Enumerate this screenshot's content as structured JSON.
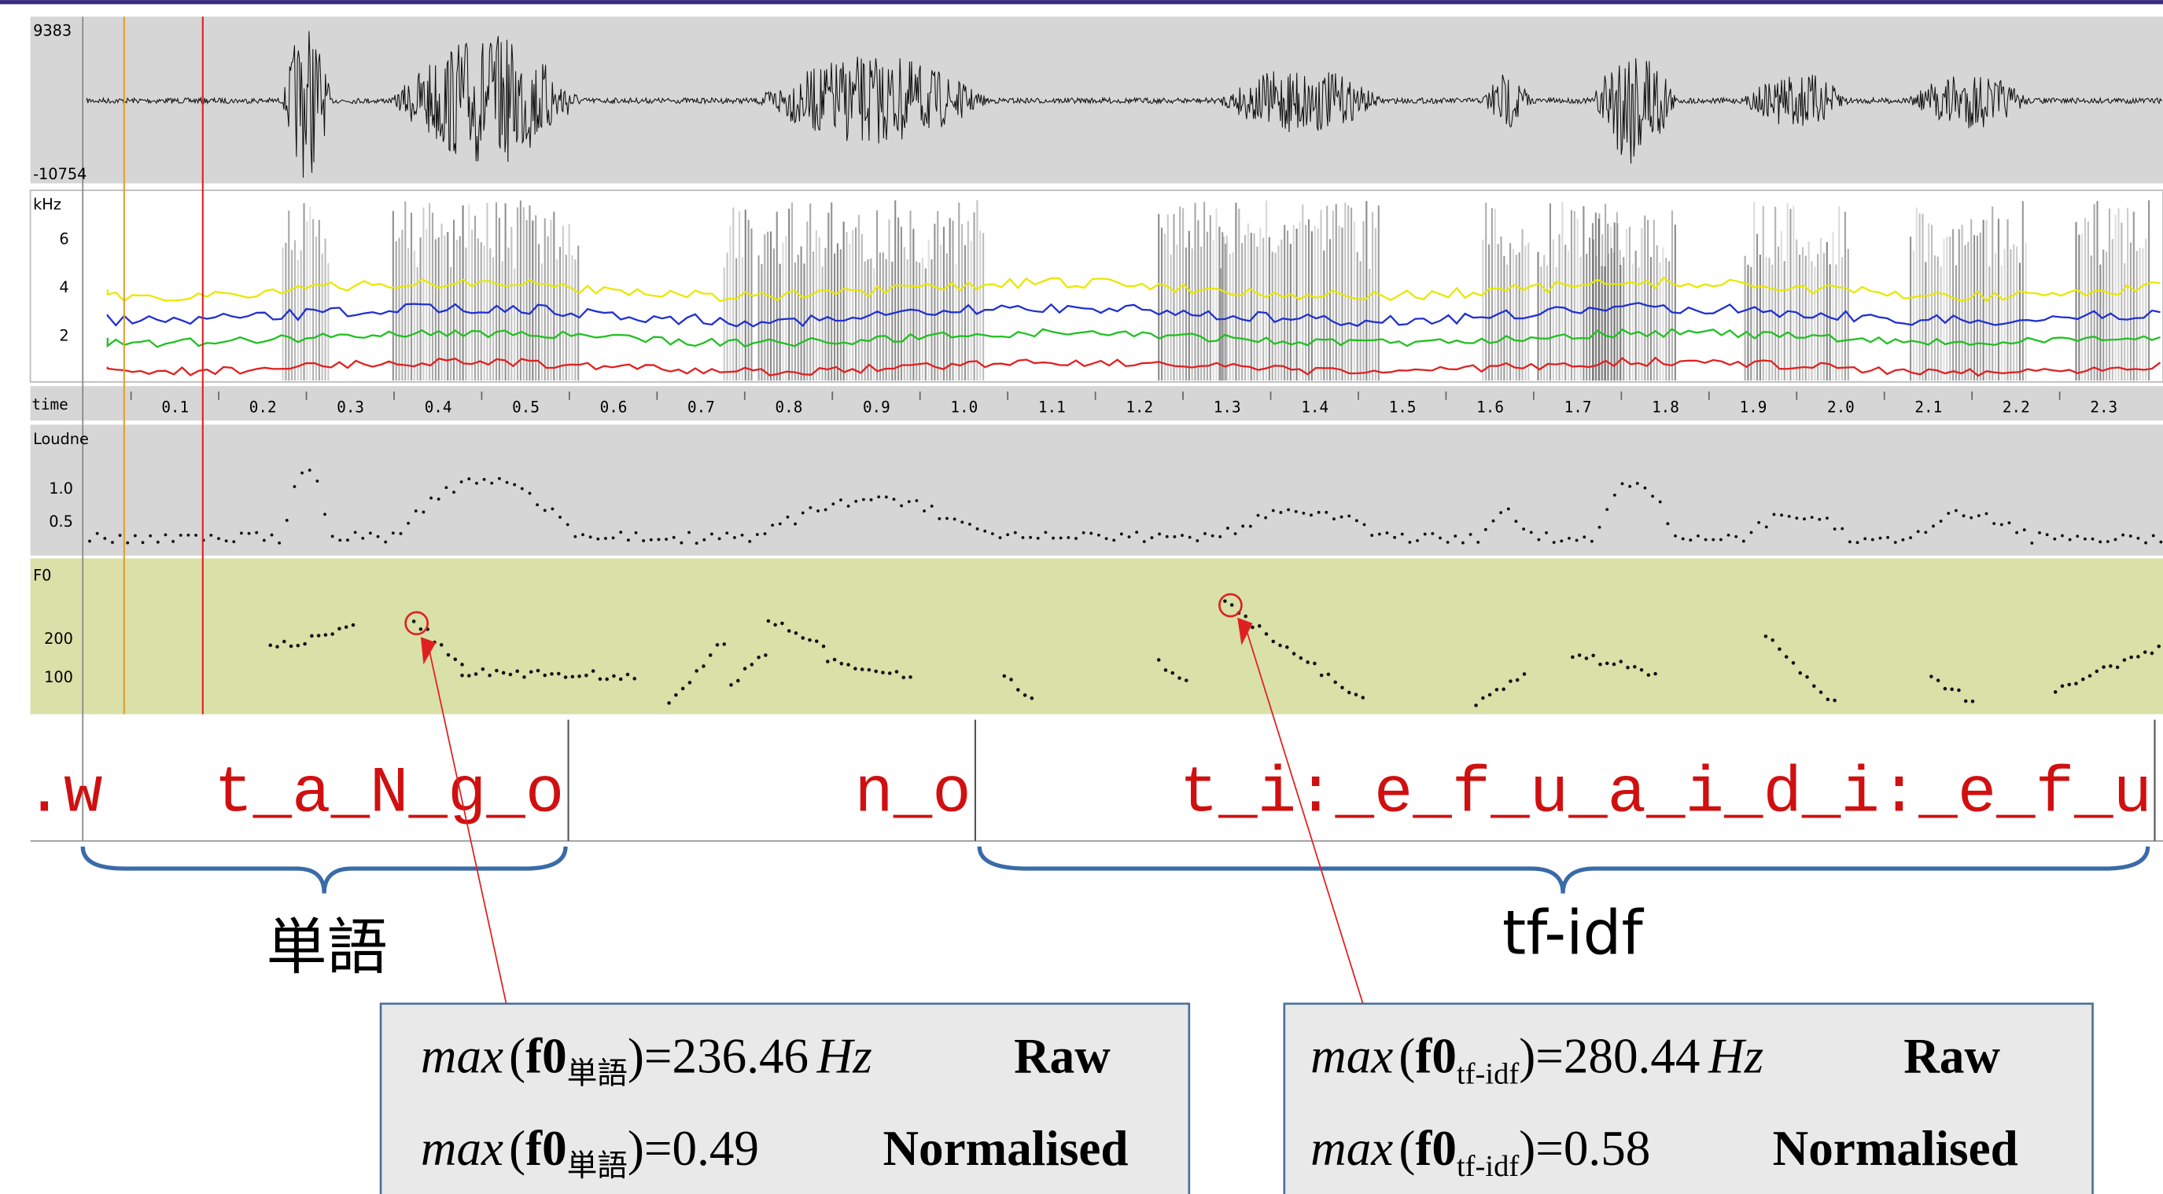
{
  "waveform": {
    "max": "9383",
    "min": "-10754"
  },
  "spectrogram": {
    "unit": "kHz",
    "ticks": [
      "6",
      "4",
      "2"
    ]
  },
  "time_axis": {
    "label": "time",
    "ticks": [
      "0.1",
      "0.2",
      "0.3",
      "0.4",
      "0.5",
      "0.6",
      "0.7",
      "0.8",
      "0.9",
      "1.0",
      "1.1",
      "1.2",
      "1.3",
      "1.4",
      "1.5",
      "1.6",
      "1.7",
      "1.8",
      "1.9",
      "2.0",
      "2.1",
      "2.2",
      "2.3"
    ]
  },
  "loudness": {
    "label": "Loudne",
    "ticks": [
      "1.0",
      "0.5"
    ]
  },
  "f0": {
    "label": "F0",
    "ticks": [
      "200",
      "100"
    ]
  },
  "segments": [
    ".w",
    "t_a_N_g_o",
    "n_o",
    "t_i:_e_f_u_a_i_d_i:_e_f_u"
  ],
  "groups": [
    {
      "label": "単語"
    },
    {
      "label": "tf-idf"
    }
  ],
  "boxes": [
    {
      "func": "max",
      "open": "(",
      "var": "f0",
      "sub": "単語",
      "close": ")",
      "raw_value": "=236.46",
      "unit": "Hz",
      "raw_label": "Raw",
      "norm_value": "=0.49",
      "norm_label": "Normalised"
    },
    {
      "func": "max",
      "open": "(",
      "var": "f0",
      "sub": "tf-idf",
      "close": ")",
      "raw_value": "=280.44",
      "unit": "Hz",
      "raw_label": "Raw",
      "norm_value": "=0.58",
      "norm_label": "Normalised"
    }
  ]
}
